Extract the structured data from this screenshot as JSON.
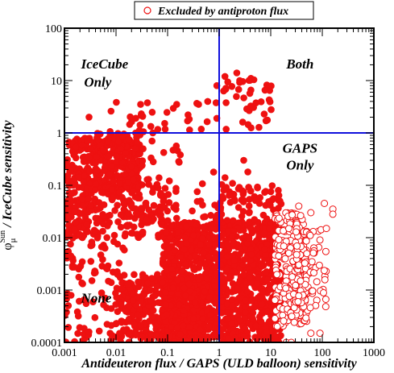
{
  "chart_data": {
    "type": "scatter",
    "title": "",
    "xlabel": "Antideuteron flux / GAPS (ULD balloon) sensitivity",
    "ylabel_symbol": "φ",
    "ylabel_sup": "Sun",
    "ylabel_sub": "μ",
    "ylabel_rest": "/ IceCube sensitivity",
    "xscale": "log",
    "yscale": "log",
    "xlim": [
      0.001,
      1000
    ],
    "ylim": [
      0.0001,
      100
    ],
    "x_ticks": [
      {
        "value": 0.001,
        "label": "0.001"
      },
      {
        "value": 0.01,
        "label": "0.01"
      },
      {
        "value": 0.1,
        "label": "0.1"
      },
      {
        "value": 1,
        "label": "1"
      },
      {
        "value": 10,
        "label": "10"
      },
      {
        "value": 100,
        "label": "100"
      },
      {
        "value": 1000,
        "label": "1000"
      }
    ],
    "y_ticks": [
      {
        "value": 0.0001,
        "label": "0.0001"
      },
      {
        "value": 0.001,
        "label": "0.001"
      },
      {
        "value": 0.01,
        "label": "0.01"
      },
      {
        "value": 0.1,
        "label": "0.1"
      },
      {
        "value": 1,
        "label": "1"
      },
      {
        "value": 10,
        "label": "10"
      },
      {
        "value": 100,
        "label": "100"
      }
    ],
    "reference_lines": [
      {
        "orientation": "vertical",
        "value": 1,
        "color": "#1010dd"
      },
      {
        "orientation": "horizontal",
        "value": 1,
        "color": "#1010dd"
      }
    ],
    "region_labels": [
      {
        "text": "IceCube",
        "x": 0.0021,
        "y": 17,
        "align": "start"
      },
      {
        "text": "Only",
        "x": 0.0024,
        "y": 7.6,
        "align": "start"
      },
      {
        "text": "Both",
        "x": 37,
        "y": 17,
        "align": "middle"
      },
      {
        "text": "GAPS",
        "x": 37,
        "y": 0.42,
        "align": "middle"
      },
      {
        "text": "Only",
        "x": 37,
        "y": 0.2,
        "align": "middle"
      },
      {
        "text": "None",
        "x": 0.0021,
        "y": 0.00058,
        "align": "start"
      }
    ],
    "legend": {
      "placement": "top-center",
      "label": "Excluded by antiproton flux"
    },
    "colors": {
      "points": "#ee1111",
      "lines": "#1010dd",
      "axes": "#000000"
    },
    "series": [
      {
        "style": "filled",
        "regions": [
          {
            "x": [
              0.0011,
              0.004
            ],
            "y": [
              0.05,
              0.8
            ],
            "count": 130
          },
          {
            "x": [
              0.004,
              0.03
            ],
            "y": [
              0.08,
              1.0
            ],
            "count": 260
          },
          {
            "x": [
              0.001,
              0.003
            ],
            "y": [
              0.01,
              0.06
            ],
            "count": 80
          },
          {
            "x": [
              0.003,
              0.1
            ],
            "y": [
              0.01,
              0.1
            ],
            "count": 140
          },
          {
            "x": [
              0.03,
              0.2
            ],
            "y": [
              0.02,
              0.6
            ],
            "count": 40
          },
          {
            "x": [
              0.012,
              0.5
            ],
            "y": [
              0.0001,
              0.002
            ],
            "count": 380
          },
          {
            "x": [
              0.08,
              16
            ],
            "y": [
              0.0001,
              0.02
            ],
            "count": 1200
          },
          {
            "x": [
              0.8,
              16
            ],
            "y": [
              0.02,
              0.1
            ],
            "count": 60
          },
          {
            "x": [
              0.001,
              0.015
            ],
            "y": [
              0.0001,
              0.01
            ],
            "count": 100
          },
          {
            "x": [
              0.007,
              1
            ],
            "y": [
              1,
              4
            ],
            "count": 30
          },
          {
            "x": [
              1.2,
              11
            ],
            "y": [
              1.1,
              12
            ],
            "count": 40
          },
          {
            "x": [
              0.2,
              2
            ],
            "y": [
              0.02,
              0.2
            ],
            "count": 18
          }
        ],
        "points": [
          {
            "x": 2.2,
            "y": 14
          },
          {
            "x": 2.5,
            "y": 10
          },
          {
            "x": 0.9,
            "y": 8
          },
          {
            "x": 0.6,
            "y": 4
          },
          {
            "x": 0.4,
            "y": 3.5
          },
          {
            "x": 0.15,
            "y": 3.5
          },
          {
            "x": 0.03,
            "y": 3.5
          },
          {
            "x": 0.008,
            "y": 2.6
          },
          {
            "x": 3,
            "y": 0.3
          },
          {
            "x": 3.6,
            "y": 0.18
          },
          {
            "x": 1.3,
            "y": 0.14
          },
          {
            "x": 14,
            "y": 0.08
          },
          {
            "x": 16,
            "y": 0.00025
          },
          {
            "x": 9,
            "y": 0.00012
          },
          {
            "x": 0.003,
            "y": 2
          },
          {
            "x": 0.05,
            "y": 0.7
          }
        ]
      },
      {
        "style": "open",
        "name": "Excluded by antiproton flux",
        "regions": [
          {
            "x": [
              12,
              50
            ],
            "y": [
              0.0002,
              0.03
            ],
            "count": 260
          },
          {
            "x": [
              30,
              120
            ],
            "y": [
              0.0004,
              0.015
            ],
            "count": 80
          }
        ],
        "points": [
          {
            "x": 110,
            "y": 0.045
          },
          {
            "x": 160,
            "y": 0.035
          },
          {
            "x": 160,
            "y": 0.028
          },
          {
            "x": 35,
            "y": 0.04
          },
          {
            "x": 60,
            "y": 0.03
          },
          {
            "x": 120,
            "y": 0.015
          },
          {
            "x": 20,
            "y": 0.0001
          },
          {
            "x": 60,
            "y": 0.00015
          },
          {
            "x": 90,
            "y": 0.00015
          },
          {
            "x": 25,
            "y": 0.0001
          }
        ]
      }
    ]
  }
}
